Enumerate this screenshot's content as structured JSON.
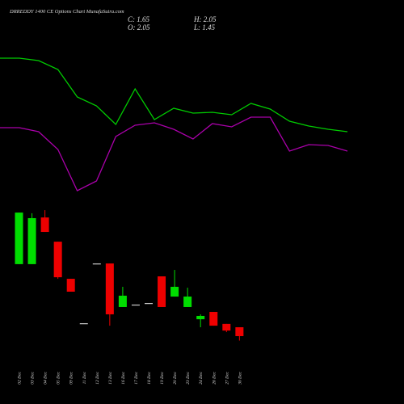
{
  "chart_data": [
    {
      "type": "line",
      "title": "DRREDDY 1400  CE Options  Chart MunafaSutra.com",
      "ylim": [
        0,
        100
      ],
      "series": [
        {
          "color": "#00cc00",
          "values": [
            89,
            89,
            87.5,
            82,
            65,
            59.5,
            48,
            70,
            51,
            58,
            55,
            55.5,
            54,
            61,
            57.5,
            50,
            47,
            45,
            43.5
          ]
        },
        {
          "color": "#aa00aa",
          "values": [
            46,
            46,
            43.5,
            32.5,
            7,
            13,
            40.5,
            47.5,
            49,
            45,
            39,
            48.5,
            46.5,
            52.5,
            52.5,
            31.5,
            35.5,
            35,
            31.5
          ]
        }
      ]
    },
    {
      "type": "candlestick",
      "ohlc_labels": [
        "C: 1.65",
        "O: 2.05",
        "H: 2.05",
        "L: 1.45"
      ],
      "categories": [
        "02 Dec",
        "03 Dec",
        "04 Dec",
        "05 Dec",
        "09 Dec",
        "11 Dec",
        "12 Dec",
        "13 Dec",
        "16 Dec",
        "17 Dec",
        "18 Dec",
        "19 Dec",
        "20 Dec",
        "23 Dec",
        "24 Dec",
        "26 Dec",
        "27 Dec",
        "30 Dec"
      ],
      "open": [
        4.89,
        4.89,
        6.99,
        5.9,
        4.23,
        2.23,
        4.92,
        4.92,
        2.96,
        3.07,
        3.14,
        4.34,
        3.43,
        2.96,
        2.41,
        2.74,
        2.2,
        2.05
      ],
      "high": [
        7.21,
        7.18,
        7.32,
        5.9,
        4.23,
        2.23,
        4.92,
        4.92,
        3.87,
        3.07,
        3.14,
        4.34,
        4.63,
        3.83,
        2.63,
        2.74,
        2.2,
        2.05
      ],
      "low": [
        4.89,
        4.89,
        6.34,
        4.23,
        3.65,
        2.23,
        4.92,
        2.12,
        2.96,
        3.07,
        3.14,
        2.96,
        3.43,
        2.96,
        2.05,
        2.12,
        1.83,
        1.45
      ],
      "close": [
        7.21,
        6.96,
        6.34,
        4.3,
        3.65,
        2.23,
        4.92,
        2.63,
        3.47,
        3.07,
        3.14,
        2.96,
        3.87,
        3.43,
        2.56,
        2.12,
        1.9,
        1.65
      ],
      "up_color": "#00dd00",
      "down_color": "#ee0000",
      "ylim": [
        1,
        8
      ]
    }
  ]
}
